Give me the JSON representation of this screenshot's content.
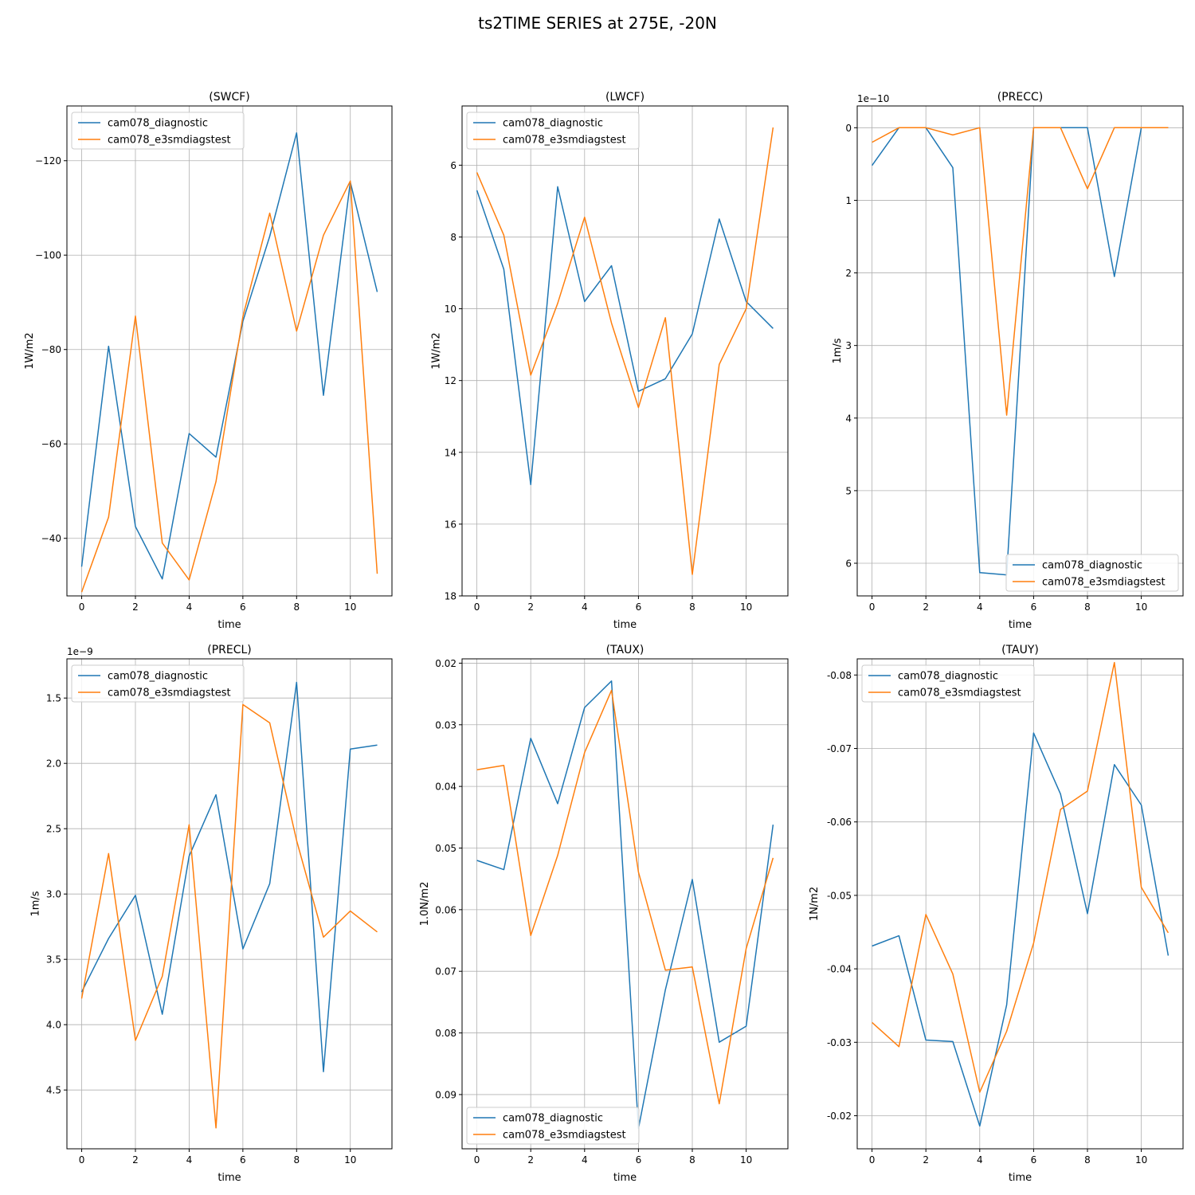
{
  "figure": {
    "title": "ts2TIME SERIES at 275E, -20N"
  },
  "colors": {
    "series": [
      "#1f77b4",
      "#ff7f0e"
    ],
    "grid": "#b0b0b0",
    "axis": "#000000"
  },
  "chart_data": [
    {
      "type": "line",
      "title": "(SWCF)",
      "xlabel": "time",
      "ylabel": "1W/m2",
      "x": [
        0,
        1,
        2,
        3,
        4,
        5,
        6,
        7,
        8,
        9,
        10,
        11
      ],
      "xlim": [
        -0.55,
        11.55
      ],
      "ylim": [
        -27.8,
        -131.6
      ],
      "xticks": [
        0,
        2,
        4,
        6,
        8,
        10
      ],
      "xtick_labels": [
        "0",
        "2",
        "4",
        "6",
        "8",
        "10"
      ],
      "yticks": [
        -40,
        -60,
        -80,
        -100,
        -120
      ],
      "ytick_labels": [
        "−40",
        "−60",
        "−80",
        "−100",
        "−120"
      ],
      "offset_label": "",
      "grid": true,
      "legend": "upper left",
      "series": [
        {
          "name": "cam078_diagnostic",
          "values": [
            -34.0,
            -80.7,
            -42.5,
            -31.4,
            -62.2,
            -57.2,
            -86.0,
            -104.0,
            -125.9,
            -70.3,
            -115.5,
            -92.2
          ]
        },
        {
          "name": "cam078_e3smdiagstest",
          "values": [
            -28.6,
            -44.5,
            -87.1,
            -39.0,
            -31.2,
            -52.0,
            -87.0,
            -108.9,
            -83.9,
            -104.2,
            -115.7,
            -32.5
          ]
        }
      ]
    },
    {
      "type": "line",
      "title": "(LWCF)",
      "xlabel": "time",
      "ylabel": "1W/m2",
      "x": [
        0,
        1,
        2,
        3,
        4,
        5,
        6,
        7,
        8,
        9,
        10,
        11
      ],
      "xlim": [
        -0.55,
        11.55
      ],
      "ylim": [
        18.0,
        4.35
      ],
      "xticks": [
        0,
        2,
        4,
        6,
        8,
        10
      ],
      "xtick_labels": [
        "0",
        "2",
        "4",
        "6",
        "8",
        "10"
      ],
      "yticks": [
        6,
        8,
        10,
        12,
        14,
        16,
        18
      ],
      "ytick_labels": [
        "6",
        "8",
        "10",
        "12",
        "14",
        "16",
        "18"
      ],
      "offset_label": "",
      "grid": true,
      "legend": "upper left",
      "series": [
        {
          "name": "cam078_diagnostic",
          "values": [
            6.7,
            8.9,
            14.9,
            6.6,
            9.8,
            8.8,
            12.3,
            11.95,
            10.7,
            7.5,
            9.8,
            10.55
          ]
        },
        {
          "name": "cam078_e3smdiagstest",
          "values": [
            6.2,
            7.95,
            11.85,
            9.85,
            7.45,
            10.4,
            12.75,
            10.25,
            17.4,
            11.55,
            10.0,
            4.95
          ]
        }
      ]
    },
    {
      "type": "line",
      "title": "(PRECC)",
      "xlabel": "time",
      "ylabel": "1m/s",
      "x": [
        0,
        1,
        2,
        3,
        4,
        5,
        6,
        7,
        8,
        9,
        10,
        11
      ],
      "xlim": [
        -0.55,
        11.55
      ],
      "ylim": [
        6.45,
        -0.3
      ],
      "xticks": [
        0,
        2,
        4,
        6,
        8,
        10
      ],
      "xtick_labels": [
        "0",
        "2",
        "4",
        "6",
        "8",
        "10"
      ],
      "yticks": [
        0,
        1,
        2,
        3,
        4,
        5,
        6
      ],
      "ytick_labels": [
        "0",
        "1",
        "2",
        "3",
        "4",
        "5",
        "6"
      ],
      "offset_label": "1e−10",
      "grid": true,
      "legend": "lower right",
      "series": [
        {
          "name": "cam078_diagnostic",
          "values": [
            0.52,
            0.0,
            0.0,
            0.55,
            6.13,
            6.16,
            0.0,
            0.0,
            0.0,
            2.05,
            0.0,
            0.0
          ]
        },
        {
          "name": "cam078_e3smdiagstest",
          "values": [
            0.2,
            0.0,
            0.0,
            0.1,
            0.0,
            3.96,
            0.0,
            0.0,
            0.84,
            0.0,
            0.0,
            0.0
          ]
        }
      ]
    },
    {
      "type": "line",
      "title": "(PRECL)",
      "xlabel": "time",
      "ylabel": "1m/s",
      "x": [
        0,
        1,
        2,
        3,
        4,
        5,
        6,
        7,
        8,
        9,
        10,
        11
      ],
      "xlim": [
        -0.55,
        11.55
      ],
      "ylim": [
        4.95,
        1.2
      ],
      "xticks": [
        0,
        2,
        4,
        6,
        8,
        10
      ],
      "xtick_labels": [
        "0",
        "2",
        "4",
        "6",
        "8",
        "10"
      ],
      "yticks": [
        1.5,
        2.0,
        2.5,
        3.0,
        3.5,
        4.0,
        4.5
      ],
      "ytick_labels": [
        "1.5",
        "2.0",
        "2.5",
        "3.0",
        "3.5",
        "4.0",
        "4.5"
      ],
      "offset_label": "1e−9",
      "grid": true,
      "legend": "upper left",
      "series": [
        {
          "name": "cam078_diagnostic",
          "values": [
            3.75,
            3.34,
            3.01,
            3.92,
            2.71,
            2.24,
            3.42,
            2.92,
            1.38,
            4.36,
            1.89,
            1.86
          ]
        },
        {
          "name": "cam078_e3smdiagstest",
          "values": [
            3.8,
            2.69,
            4.12,
            3.63,
            2.47,
            4.79,
            1.55,
            1.69,
            2.59,
            3.33,
            3.13,
            3.29
          ]
        }
      ]
    },
    {
      "type": "line",
      "title": "(TAUX)",
      "xlabel": "time",
      "ylabel": "1.0N/m2",
      "x": [
        0,
        1,
        2,
        3,
        4,
        5,
        6,
        7,
        8,
        9,
        10,
        11
      ],
      "xlim": [
        -0.55,
        11.55
      ],
      "ylim": [
        0.0988,
        0.0193
      ],
      "xticks": [
        0,
        2,
        4,
        6,
        8,
        10
      ],
      "xtick_labels": [
        "0",
        "2",
        "4",
        "6",
        "8",
        "10"
      ],
      "yticks": [
        0.02,
        0.03,
        0.04,
        0.05,
        0.06,
        0.07,
        0.08,
        0.09
      ],
      "ytick_labels": [
        "0.02",
        "0.03",
        "0.04",
        "0.05",
        "0.06",
        "0.07",
        "0.08",
        "0.09"
      ],
      "offset_label": "",
      "grid": true,
      "legend": "lower left",
      "series": [
        {
          "name": "cam078_diagnostic",
          "values": [
            0.052,
            0.0535,
            0.0322,
            0.0428,
            0.0272,
            0.0229,
            0.0955,
            0.073,
            0.0551,
            0.0815,
            0.0789,
            0.0462
          ]
        },
        {
          "name": "cam078_e3smdiagstest",
          "values": [
            0.0373,
            0.0366,
            0.0642,
            0.0512,
            0.0345,
            0.0244,
            0.0539,
            0.0698,
            0.0693,
            0.0915,
            0.0663,
            0.0516
          ]
        }
      ]
    },
    {
      "type": "line",
      "title": "(TAUY)",
      "xlabel": "time",
      "ylabel": "1N/m2",
      "x": [
        0,
        1,
        2,
        3,
        4,
        5,
        6,
        7,
        8,
        9,
        10,
        11
      ],
      "xlim": [
        -0.55,
        11.55
      ],
      "ylim": [
        -0.0155,
        -0.0822
      ],
      "xticks": [
        0,
        2,
        4,
        6,
        8,
        10
      ],
      "xtick_labels": [
        "0",
        "2",
        "4",
        "6",
        "8",
        "10"
      ],
      "yticks": [
        -0.02,
        -0.03,
        -0.04,
        -0.05,
        -0.06,
        -0.07,
        -0.08
      ],
      "ytick_labels": [
        "-0.02",
        "-0.03",
        "-0.04",
        "-0.05",
        "-0.06",
        "-0.07",
        "-0.08"
      ],
      "offset_label": "",
      "grid": true,
      "legend": "upper left",
      "series": [
        {
          "name": "cam078_diagnostic",
          "values": [
            -0.0431,
            -0.0445,
            -0.0303,
            -0.0301,
            -0.0186,
            -0.0351,
            -0.0721,
            -0.0638,
            -0.0475,
            -0.0678,
            -0.0623,
            -0.0418
          ]
        },
        {
          "name": "cam078_e3smdiagstest",
          "values": [
            -0.0327,
            -0.0294,
            -0.0474,
            -0.0393,
            -0.0232,
            -0.0315,
            -0.0435,
            -0.0617,
            -0.0642,
            -0.0817,
            -0.0511,
            -0.0449
          ]
        }
      ]
    }
  ]
}
